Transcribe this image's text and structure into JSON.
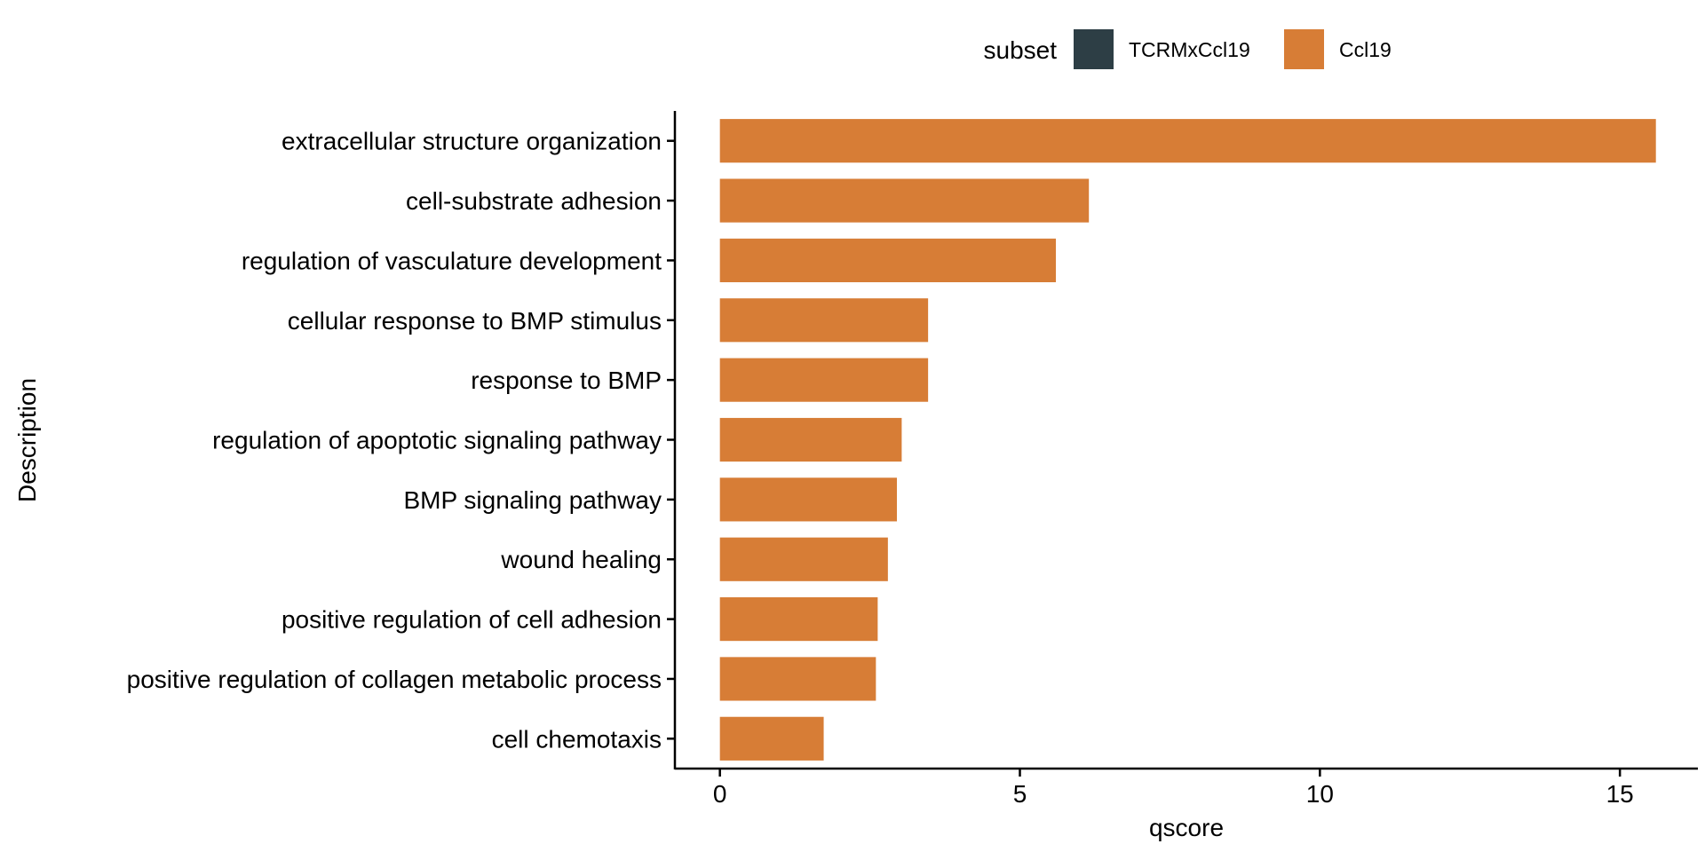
{
  "chart_data": {
    "type": "bar",
    "orientation": "horizontal",
    "xlabel": "qscore",
    "ylabel": "Description",
    "xlim": [
      -0.75,
      16.3
    ],
    "xticks": [
      0,
      5,
      10,
      15
    ],
    "grid": false,
    "legend": {
      "title": "subset",
      "position": "top",
      "entries": [
        {
          "name": "TCRMxCcl19",
          "color": "#2d3e45"
        },
        {
          "name": "Ccl19",
          "color": "#d77d36"
        }
      ]
    },
    "categories": [
      "extracellular structure organization",
      "cell-substrate adhesion",
      "regulation of vasculature development",
      "cellular response to BMP stimulus",
      "response to BMP",
      "regulation of apoptotic signaling pathway",
      "BMP signaling pathway",
      "wound healing",
      "positive regulation of cell adhesion",
      "positive regulation of collagen metabolic process",
      "cell chemotaxis"
    ],
    "series": [
      {
        "name": "Ccl19",
        "color": "#d77d36",
        "values": [
          15.6,
          6.15,
          5.6,
          3.47,
          3.47,
          3.03,
          2.95,
          2.8,
          2.63,
          2.6,
          1.73
        ]
      }
    ]
  }
}
